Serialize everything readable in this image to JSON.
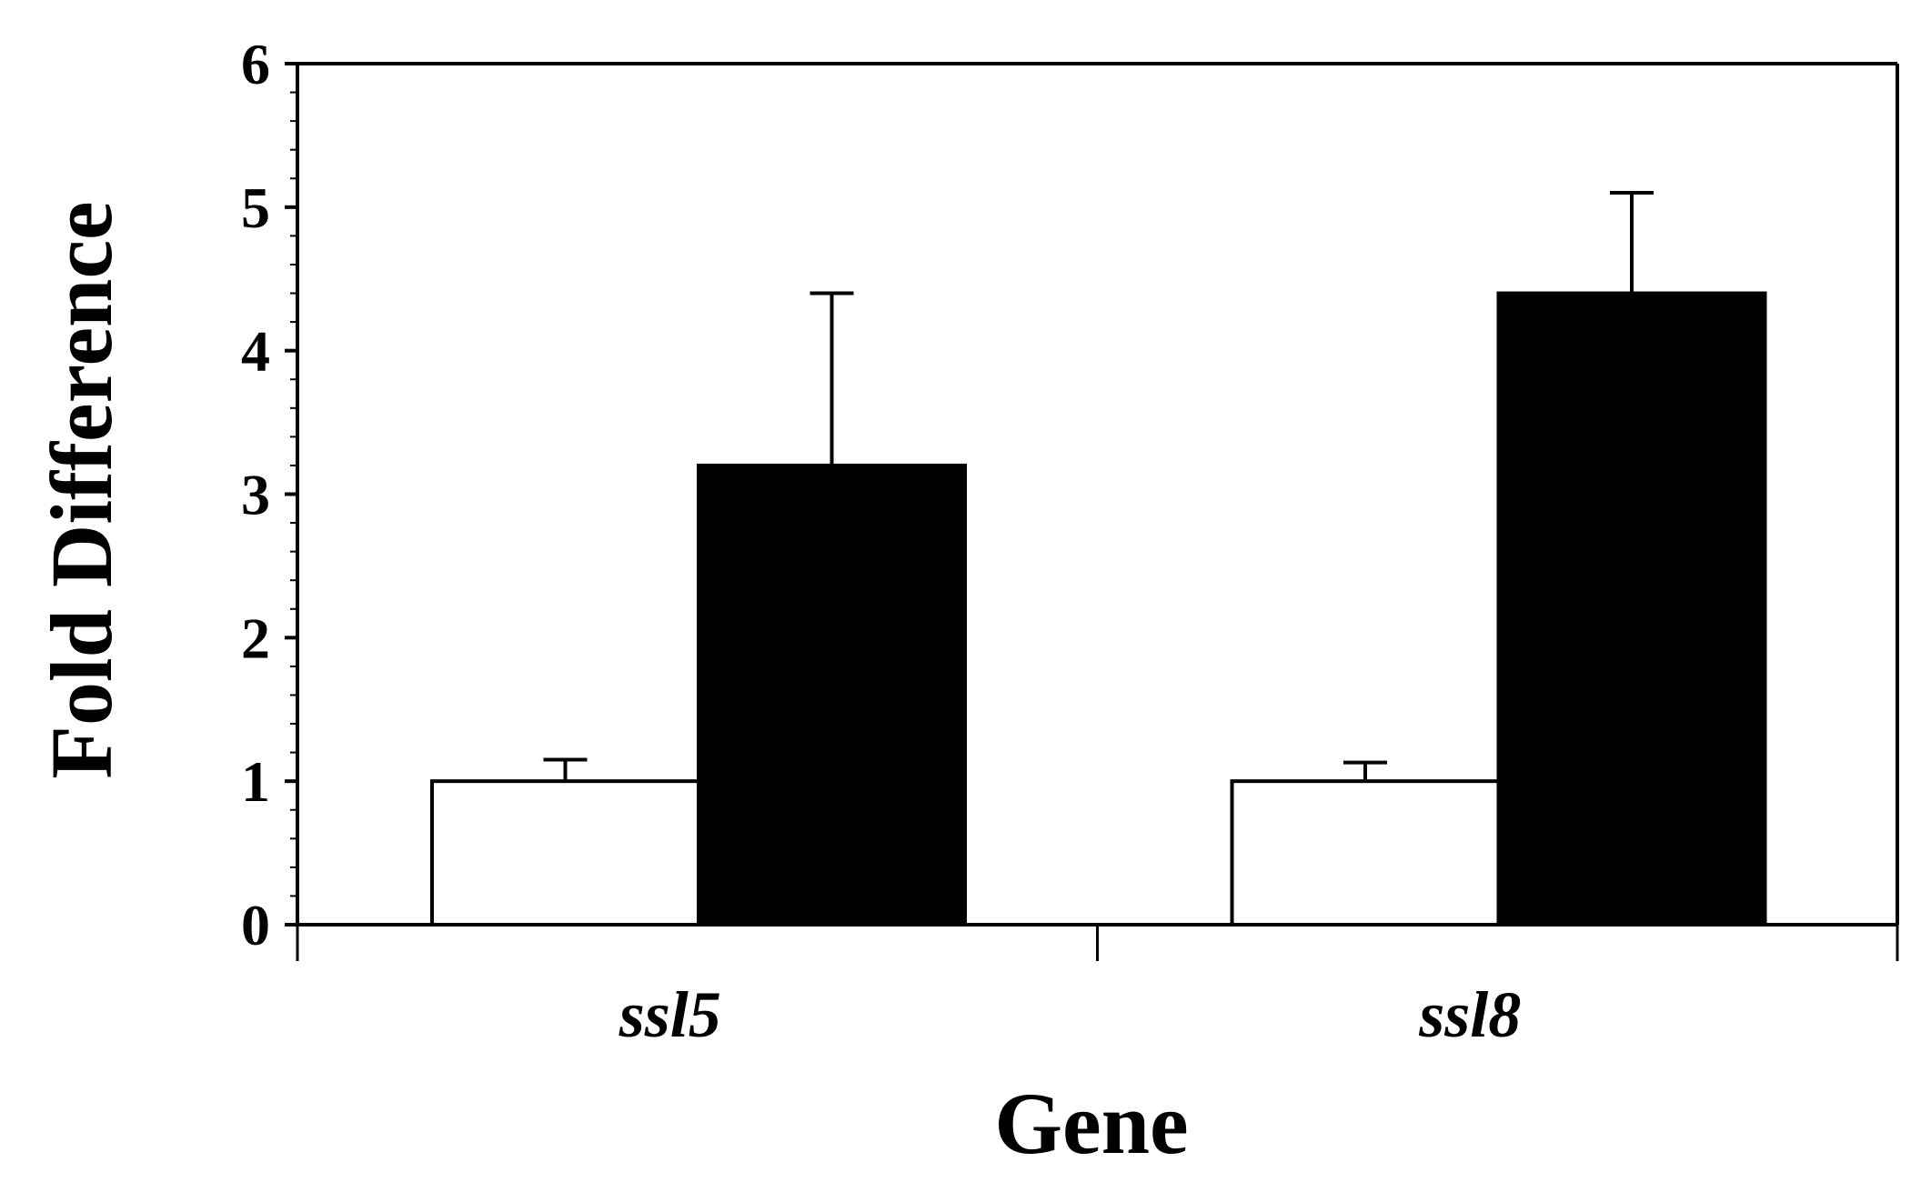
{
  "chart_data": {
    "type": "bar",
    "title": "",
    "xlabel": "Gene",
    "ylabel": "Fold Difference",
    "categories": [
      "ssl5",
      "ssl8"
    ],
    "series": [
      {
        "values": [
          1.0,
          1.0
        ],
        "errors": [
          0.15,
          0.13
        ],
        "color": "#ffffff"
      },
      {
        "values": [
          3.2,
          4.4
        ],
        "errors": [
          1.2,
          0.7
        ],
        "color": "#000000"
      }
    ],
    "ylim": [
      0,
      6
    ],
    "yticks": [
      "0",
      "1",
      "2",
      "3",
      "4",
      "5",
      "6"
    ],
    "minor_ticks_per_major": 5,
    "grid": false,
    "legend": "none",
    "category_label_style": "italic"
  }
}
